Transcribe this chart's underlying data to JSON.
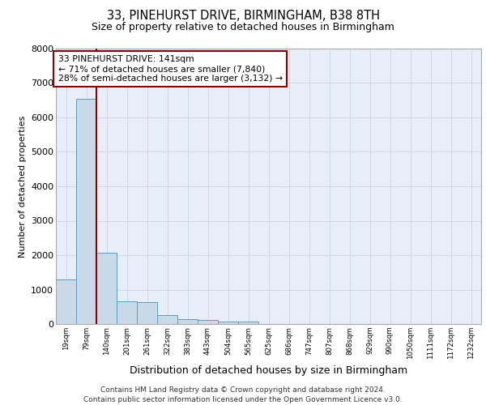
{
  "title_line1": "33, PINEHURST DRIVE, BIRMINGHAM, B38 8TH",
  "title_line2": "Size of property relative to detached houses in Birmingham",
  "xlabel": "Distribution of detached houses by size in Birmingham",
  "ylabel": "Number of detached properties",
  "categories": [
    "19sqm",
    "79sqm",
    "140sqm",
    "201sqm",
    "261sqm",
    "322sqm",
    "383sqm",
    "443sqm",
    "504sqm",
    "565sqm",
    "625sqm",
    "686sqm",
    "747sqm",
    "807sqm",
    "868sqm",
    "929sqm",
    "990sqm",
    "1050sqm",
    "1111sqm",
    "1172sqm",
    "1232sqm"
  ],
  "values": [
    1300,
    6550,
    2080,
    650,
    640,
    250,
    130,
    110,
    70,
    70,
    0,
    0,
    0,
    0,
    0,
    0,
    0,
    0,
    0,
    0,
    0
  ],
  "bar_color": "#c9d9e8",
  "bar_edge_color": "#5b9dc9",
  "vline_x_index": 2,
  "vline_color": "#8b0000",
  "annotation_text": "33 PINEHURST DRIVE: 141sqm\n← 71% of detached houses are smaller (7,840)\n28% of semi-detached houses are larger (3,132) →",
  "annotation_box_color": "#8b0000",
  "ylim": [
    0,
    8000
  ],
  "yticks": [
    0,
    1000,
    2000,
    3000,
    4000,
    5000,
    6000,
    7000,
    8000
  ],
  "grid_color": "#d0d8e8",
  "bg_color": "#e8eef8",
  "footer_text": "Contains HM Land Registry data © Crown copyright and database right 2024.\nContains public sector information licensed under the Open Government Licence v3.0."
}
